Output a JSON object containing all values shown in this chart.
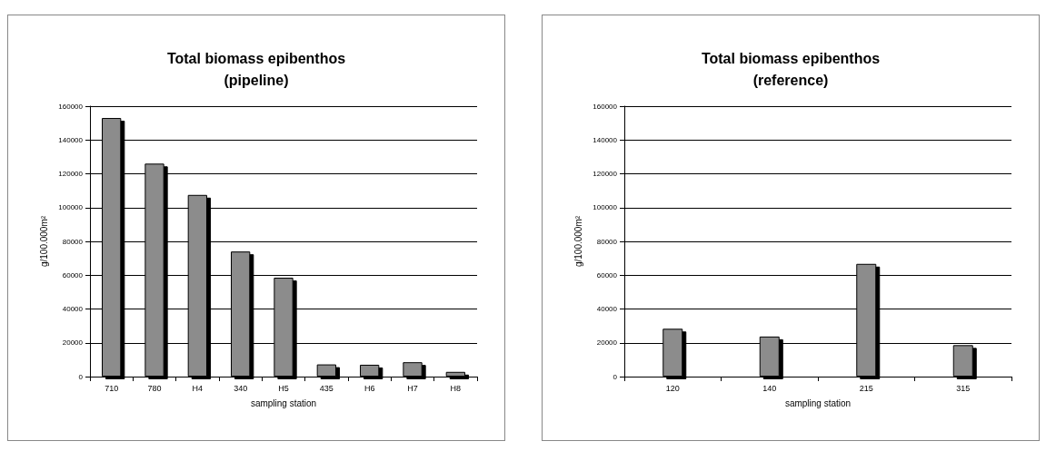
{
  "chart_data": [
    {
      "type": "bar",
      "title": "Total biomass epibenthos\n(pipeline)",
      "xlabel": "sampling station",
      "ylabel": "g/100.000m²",
      "categories": [
        "710",
        "780",
        "H4",
        "340",
        "H5",
        "435",
        "H6",
        "H7",
        "H8"
      ],
      "values": [
        153000,
        126000,
        107500,
        74000,
        58500,
        7200,
        7000,
        8500,
        2800
      ],
      "color": "#8c8c8c",
      "ylim": [
        0,
        160000
      ],
      "yticks": [
        0,
        20000,
        40000,
        60000,
        80000,
        100000,
        120000,
        140000,
        160000
      ],
      "grid": "y"
    },
    {
      "type": "bar",
      "title": "Total biomass epibenthos\n(reference)",
      "xlabel": "sampling station",
      "ylabel": "g/100.000m²",
      "categories": [
        "120",
        "140",
        "215",
        "315"
      ],
      "values": [
        28300,
        23700,
        66700,
        18600
      ],
      "color": "#8c8c8c",
      "ylim": [
        0,
        160000
      ],
      "yticks": [
        0,
        20000,
        40000,
        60000,
        80000,
        100000,
        120000,
        140000,
        160000
      ],
      "grid": "y"
    }
  ]
}
